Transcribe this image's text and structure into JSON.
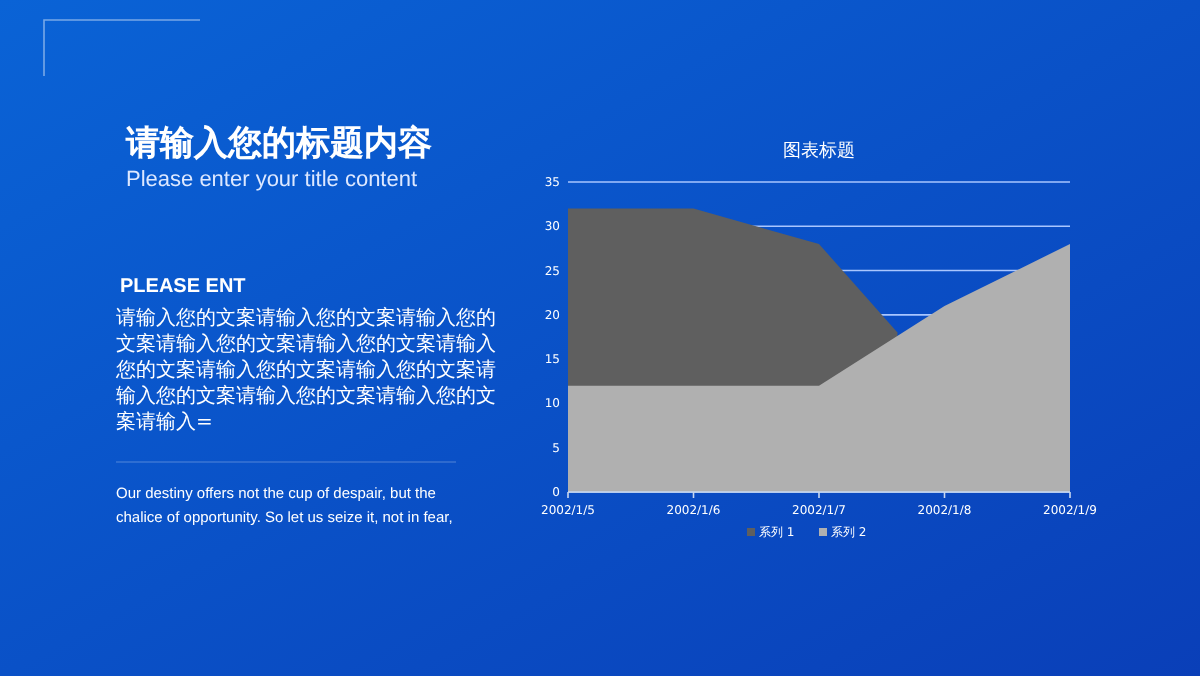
{
  "chart_data": {
    "type": "area",
    "title": "图表标题",
    "x": [
      "2002-01-05",
      "2002-01-06",
      "2002-01-07",
      "2002-01-08",
      "2002-01-09"
    ],
    "xlim": [
      "2002-01-05",
      "2002-01-09"
    ],
    "xticks": [
      {
        "value": "2002-01-05",
        "label": "2002/1/5"
      },
      {
        "value": "2002-01-06",
        "label": "2002/1/6"
      },
      {
        "value": "2002-01-07",
        "label": "2002/1/7"
      },
      {
        "value": "2002-01-08",
        "label": "2002/1/8"
      },
      {
        "value": "2002-01-09",
        "label": "2002/1/9"
      }
    ],
    "series": [
      {
        "name": "系列 1",
        "color": "#5f5f5f",
        "x": [
          "2002-01-05",
          "2002-01-06",
          "2002-01-07",
          "2002-01-07T15:00"
        ],
        "values": [
          32,
          32,
          28,
          18
        ]
      },
      {
        "name": "系列 2",
        "color": "#b0b0b0",
        "values": [
          12,
          12,
          12,
          21,
          28
        ]
      }
    ],
    "ylim": [
      0,
      35
    ],
    "yticks": [
      0,
      5,
      10,
      15,
      20,
      25,
      30,
      35
    ],
    "grid": "y",
    "legend": "bottom",
    "annotations": [
      "请输入您的标题内容",
      "Please enter your title content",
      "PLEASE ENT",
      "请输入您的文案请输入您的文案请输入您的文案请输入您的文案请输入您的文案请输入您的文案请输入您的文案请输入您的文案请输入您的文案请输入您的文案请输入您的文案请输入=",
      "Our destiny offers not the cup of despair, but the chalice of opportunity. So let us seize it, not in fear,"
    ]
  }
}
